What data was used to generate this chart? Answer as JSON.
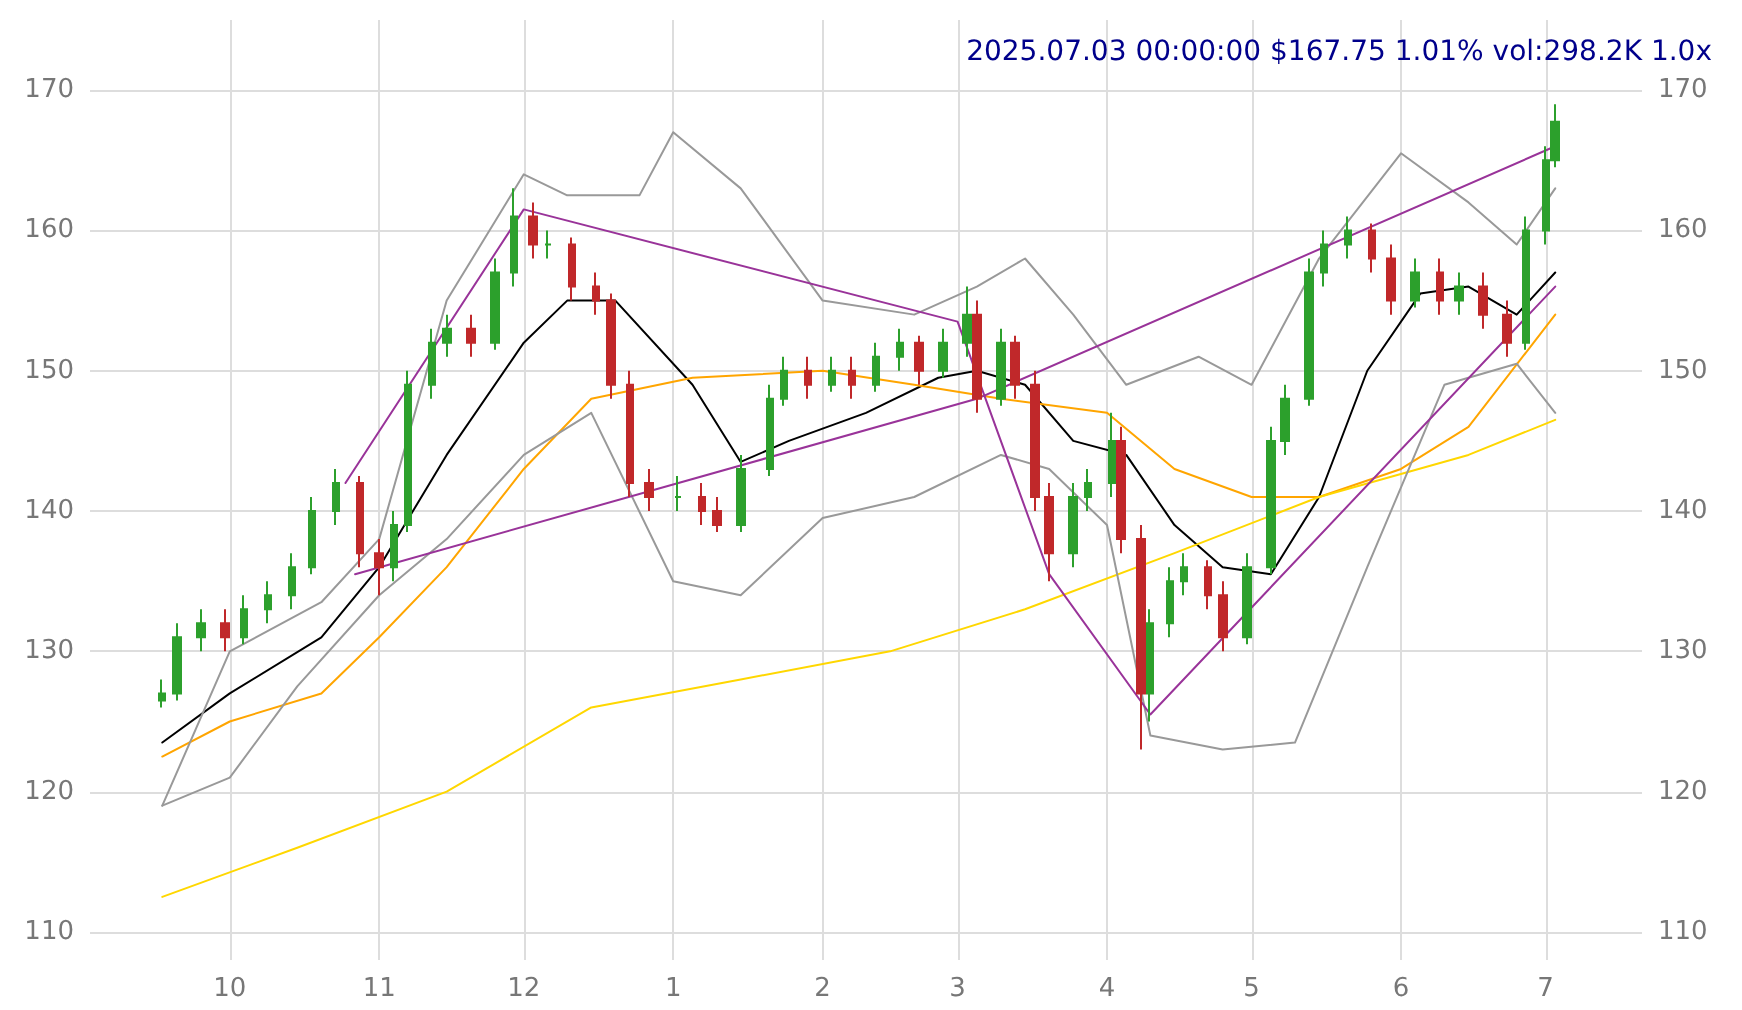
{
  "chart_data": {
    "type": "candlestick",
    "title": "2025.07.03 00:00:00 $167.75 1.01% vol:298.2K 1.0x",
    "x": [
      "2024-09-17",
      "2024-09-20",
      "2024-09-25",
      "2024-09-30",
      "2024-10-04",
      "2024-10-09",
      "2024-10-14",
      "2024-10-18",
      "2024-10-23",
      "2024-10-28",
      "2024-11-01",
      "2024-11-04",
      "2024-11-07",
      "2024-11-12",
      "2024-11-15",
      "2024-11-20",
      "2024-11-25",
      "2024-11-29",
      "2024-12-03",
      "2024-12-06",
      "2024-12-11",
      "2024-12-16",
      "2024-12-19",
      "2024-12-23",
      "2024-12-27",
      "2025-01-02",
      "2025-01-07",
      "2025-01-10",
      "2025-01-15",
      "2025-01-21",
      "2025-01-24",
      "2025-01-29",
      "2025-02-03",
      "2025-02-07",
      "2025-02-12",
      "2025-02-17",
      "2025-02-21",
      "2025-02-26",
      "2025-03-03",
      "2025-03-05",
      "2025-03-10",
      "2025-03-13",
      "2025-03-17",
      "2025-03-20",
      "2025-03-25",
      "2025-03-28",
      "2025-04-02",
      "2025-04-04",
      "2025-04-08",
      "2025-04-10",
      "2025-04-14",
      "2025-04-17",
      "2025-04-22",
      "2025-04-25",
      "2025-04-30",
      "2025-05-05",
      "2025-05-08",
      "2025-05-13",
      "2025-05-16",
      "2025-05-21",
      "2025-05-26",
      "2025-05-30",
      "2025-06-04",
      "2025-06-09",
      "2025-06-13",
      "2025-06-18",
      "2025-06-23",
      "2025-06-27",
      "2025-07-01",
      "2025-07-03"
    ],
    "ohlc": [
      [
        126.5,
        128,
        126,
        127
      ],
      [
        127,
        132,
        126.5,
        131
      ],
      [
        131,
        133,
        130,
        132
      ],
      [
        132,
        133,
        130,
        131
      ],
      [
        131,
        134,
        130.5,
        133
      ],
      [
        133,
        135,
        132,
        134
      ],
      [
        134,
        137,
        133,
        136
      ],
      [
        136,
        141,
        135.5,
        140
      ],
      [
        140,
        143,
        139,
        142
      ],
      [
        142,
        142.5,
        136,
        137
      ],
      [
        137,
        138,
        134,
        136
      ],
      [
        136,
        140,
        135,
        139
      ],
      [
        139,
        150,
        138.5,
        149
      ],
      [
        149,
        153,
        148,
        152
      ],
      [
        152,
        154,
        151,
        153
      ],
      [
        153,
        154,
        151,
        152
      ],
      [
        152,
        158,
        151.5,
        157
      ],
      [
        157,
        163,
        156,
        161
      ],
      [
        161,
        162,
        158,
        159
      ],
      [
        159,
        160,
        158,
        159
      ],
      [
        159,
        159.5,
        155,
        156
      ],
      [
        156,
        157,
        154,
        155
      ],
      [
        155,
        155.5,
        148,
        149
      ],
      [
        149,
        150,
        141,
        142
      ],
      [
        142,
        143,
        140,
        141
      ],
      [
        141,
        142.5,
        140,
        141
      ],
      [
        141,
        142,
        139,
        140
      ],
      [
        140,
        141,
        138.5,
        139
      ],
      [
        139,
        144,
        138.5,
        143
      ],
      [
        143,
        149,
        142.5,
        148
      ],
      [
        148,
        151,
        147.5,
        150
      ],
      [
        150,
        151,
        148,
        149
      ],
      [
        149,
        151,
        148.5,
        150
      ],
      [
        150,
        151,
        148,
        149
      ],
      [
        149,
        152,
        148.5,
        151
      ],
      [
        151,
        153,
        150,
        152
      ],
      [
        152,
        152.5,
        149,
        150
      ],
      [
        150,
        153,
        149.5,
        152
      ],
      [
        152,
        156,
        151,
        154
      ],
      [
        154,
        155,
        147,
        148
      ],
      [
        148,
        153,
        147.5,
        152
      ],
      [
        152,
        152.5,
        148,
        149
      ],
      [
        149,
        150,
        140,
        141
      ],
      [
        141,
        142,
        135,
        137
      ],
      [
        137,
        142,
        136,
        141
      ],
      [
        141,
        143,
        140,
        142
      ],
      [
        142,
        147,
        141,
        145
      ],
      [
        145,
        146,
        137,
        138
      ],
      [
        138,
        139,
        123,
        127
      ],
      [
        127,
        133,
        125,
        132
      ],
      [
        132,
        136,
        131,
        135
      ],
      [
        135,
        137,
        134,
        136
      ],
      [
        136,
        136.5,
        133,
        134
      ],
      [
        134,
        135,
        130,
        131
      ],
      [
        131,
        137,
        130.5,
        136
      ],
      [
        136,
        146,
        135.5,
        145
      ],
      [
        145,
        149,
        144,
        148
      ],
      [
        148,
        158,
        147.5,
        157
      ],
      [
        157,
        160,
        156,
        159
      ],
      [
        159,
        161,
        158,
        160
      ],
      [
        160,
        160.5,
        157,
        158
      ],
      [
        158,
        159,
        154,
        155
      ],
      [
        155,
        158,
        154.5,
        157
      ],
      [
        157,
        158,
        154,
        155
      ],
      [
        155,
        157,
        154,
        156
      ],
      [
        156,
        157,
        153,
        154
      ],
      [
        154,
        155,
        151,
        152
      ],
      [
        152,
        161,
        151.5,
        160
      ],
      [
        160,
        166,
        159,
        165
      ],
      [
        165,
        169,
        164.5,
        167.75
      ]
    ],
    "series": [
      {
        "type": "line",
        "color": "#000000",
        "x": [
          "2024-09-17",
          "2024-10-01",
          "2024-10-20",
          "2024-11-01",
          "2024-11-15",
          "2024-12-01",
          "2024-12-10",
          "2024-12-20",
          "2025-01-05",
          "2025-01-15",
          "2025-01-25",
          "2025-02-10",
          "2025-02-25",
          "2025-03-05",
          "2025-03-15",
          "2025-03-25",
          "2025-04-05",
          "2025-04-15",
          "2025-04-25",
          "2025-05-05",
          "2025-05-15",
          "2025-05-25",
          "2025-06-05",
          "2025-06-15",
          "2025-06-25",
          "2025-07-03"
        ],
        "values": [
          123.5,
          127,
          131,
          136,
          144,
          152,
          155,
          155,
          149,
          143.5,
          145,
          147,
          149.5,
          150,
          149,
          145,
          144,
          139,
          136,
          135.5,
          141,
          150,
          155.5,
          156,
          154,
          157
        ]
      },
      {
        "type": "line",
        "color": "#ffa500",
        "x": [
          "2024-09-17",
          "2024-10-01",
          "2024-10-20",
          "2024-11-01",
          "2024-11-15",
          "2024-12-01",
          "2024-12-15",
          "2025-01-05",
          "2025-02-01",
          "2025-02-20",
          "2025-03-10",
          "2025-04-01",
          "2025-04-15",
          "2025-05-01",
          "2025-05-15",
          "2025-06-01",
          "2025-06-15",
          "2025-07-03"
        ],
        "values": [
          122.5,
          125,
          127,
          131,
          136,
          143,
          148,
          149.5,
          150,
          149,
          148,
          147,
          143,
          141,
          141,
          143,
          146,
          154
        ]
      },
      {
        "type": "line",
        "color": "#ffd700",
        "x": [
          "2024-09-17",
          "2024-10-15",
          "2024-11-15",
          "2024-12-15",
          "2025-01-15",
          "2025-02-15",
          "2025-03-15",
          "2025-04-15",
          "2025-05-15",
          "2025-06-15",
          "2025-07-03"
        ],
        "values": [
          112.5,
          116,
          120,
          126,
          128,
          130,
          133,
          137,
          141,
          144,
          146.5
        ]
      },
      {
        "type": "line",
        "color": "#999999",
        "x": [
          "2024-09-17",
          "2024-10-01",
          "2024-10-20",
          "2024-11-01",
          "2024-11-15",
          "2024-12-01",
          "2024-12-10",
          "2024-12-25",
          "2025-01-01",
          "2025-01-15",
          "2025-02-01",
          "2025-02-20",
          "2025-03-05",
          "2025-03-15",
          "2025-03-25",
          "2025-04-05",
          "2025-04-20",
          "2025-05-01",
          "2025-05-15",
          "2025-06-01",
          "2025-06-15",
          "2025-06-25",
          "2025-07-03"
        ],
        "values": [
          119,
          130,
          133.5,
          138,
          155,
          164,
          162.5,
          162.5,
          167,
          163,
          155,
          154,
          156,
          158,
          154,
          149,
          151,
          149,
          158,
          165.5,
          162,
          159,
          163
        ]
      },
      {
        "type": "line",
        "color": "#999999",
        "x": [
          "2024-09-17",
          "2024-10-01",
          "2024-10-15",
          "2024-11-01",
          "2024-11-15",
          "2024-12-01",
          "2024-12-15",
          "2025-01-01",
          "2025-01-15",
          "2025-02-01",
          "2025-02-20",
          "2025-03-10",
          "2025-03-20",
          "2025-04-01",
          "2025-04-10",
          "2025-04-25",
          "2025-05-10",
          "2025-05-25",
          "2025-06-10",
          "2025-06-25",
          "2025-07-03"
        ],
        "values": [
          119,
          121,
          127.5,
          134,
          138,
          144,
          147,
          135,
          134,
          139.5,
          141,
          144,
          143,
          139,
          124,
          123,
          123.5,
          136,
          149,
          150.5,
          147
        ]
      },
      {
        "type": "line",
        "color": "#993399",
        "x": [
          "2024-10-25",
          "2024-12-01",
          "2025-03-01",
          "2025-03-20",
          "2025-04-10",
          "2025-07-03"
        ],
        "values": [
          142,
          161.5,
          153.5,
          135.5,
          125.5,
          156
        ]
      },
      {
        "type": "line",
        "color": "#993399",
        "x": [
          "2024-10-27",
          "2025-03-05",
          "2025-07-03"
        ],
        "values": [
          135.5,
          148,
          166
        ]
      }
    ],
    "xlim": [
      "2024-09-02",
      "2025-07-21"
    ],
    "xticks": [
      {
        "value": "2024-10-01",
        "label": "10"
      },
      {
        "value": "2024-11-01",
        "label": "11"
      },
      {
        "value": "2024-12-01",
        "label": "12"
      },
      {
        "value": "2025-01-01",
        "label": "1"
      },
      {
        "value": "2025-02-01",
        "label": "2"
      },
      {
        "value": "2025-03-01",
        "label": "3"
      },
      {
        "value": "2025-04-01",
        "label": "4"
      },
      {
        "value": "2025-05-01",
        "label": "5"
      },
      {
        "value": "2025-06-01",
        "label": "6"
      },
      {
        "value": "2025-07-01",
        "label": "7"
      }
    ],
    "ylim": [
      108,
      175
    ],
    "yticks": [
      110,
      120,
      130,
      140,
      150,
      160,
      170
    ],
    "y2lim": [
      108,
      175
    ],
    "y2ticks": [
      110,
      120,
      130,
      140,
      150,
      160,
      170
    ],
    "grid": true,
    "marker": "none",
    "line_style": "solid"
  }
}
